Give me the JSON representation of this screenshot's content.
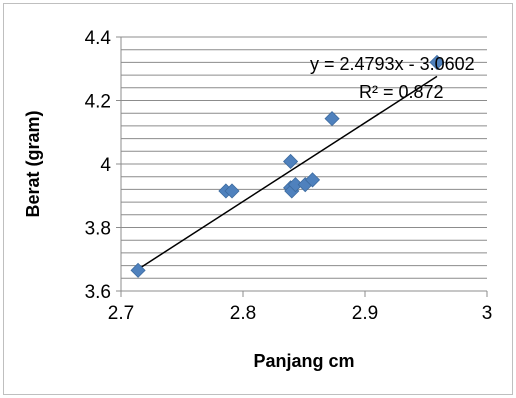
{
  "chart_data": {
    "type": "scatter",
    "xlabel": "Panjang cm",
    "ylabel": "Berat (gram)",
    "xlim": [
      2.7,
      3.0
    ],
    "ylim": [
      3.6,
      4.4
    ],
    "x_ticks": [
      "2.7",
      "2.8",
      "2.9",
      "3"
    ],
    "y_ticks": [
      "3.6",
      "3.8",
      "4",
      "4.2",
      "4.4"
    ],
    "y_minor_step": 0.04,
    "grid": true,
    "marker_color": "#4f81bd",
    "trendline_color": "#000000",
    "points": [
      {
        "x": 2.714,
        "y": 3.665
      },
      {
        "x": 2.786,
        "y": 3.915
      },
      {
        "x": 2.791,
        "y": 3.915
      },
      {
        "x": 2.839,
        "y": 4.008
      },
      {
        "x": 2.839,
        "y": 3.925
      },
      {
        "x": 2.84,
        "y": 3.915
      },
      {
        "x": 2.843,
        "y": 3.935
      },
      {
        "x": 2.851,
        "y": 3.935
      },
      {
        "x": 2.857,
        "y": 3.95
      },
      {
        "x": 2.873,
        "y": 4.143
      },
      {
        "x": 2.959,
        "y": 4.32
      }
    ],
    "trendline": {
      "slope": 2.4793,
      "intercept": -3.0602,
      "x_range": [
        2.714,
        2.959
      ],
      "equation": "y = 2.4793x - 3.0602",
      "r_squared": "R² = 0.872"
    }
  }
}
